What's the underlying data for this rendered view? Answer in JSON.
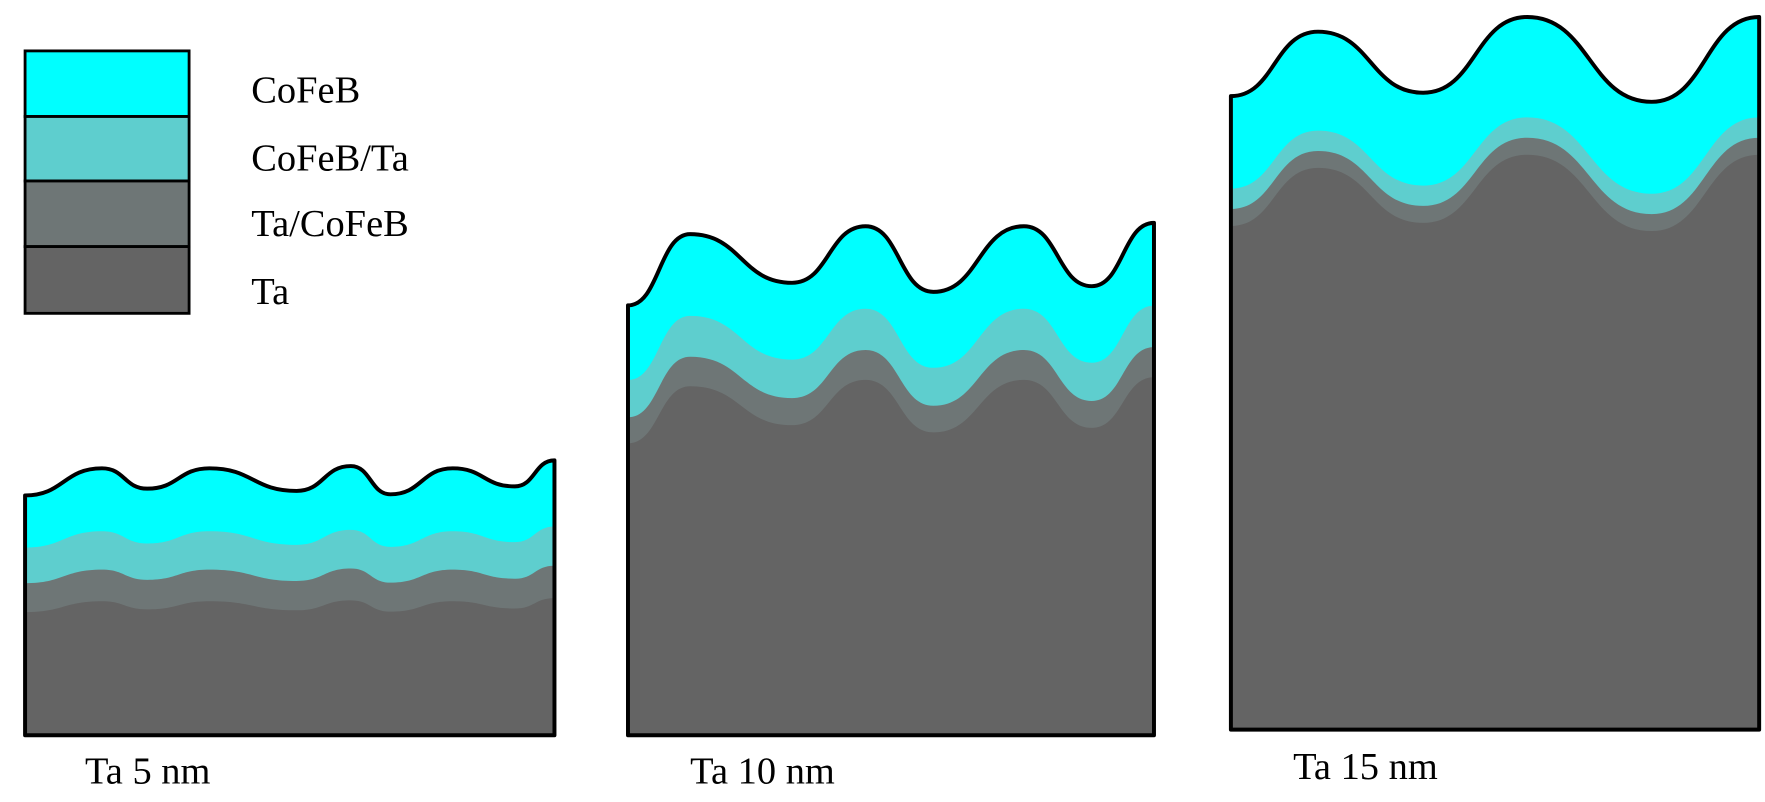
{
  "legend": {
    "items": [
      "CoFeB",
      "CoFeB/Ta",
      "Ta/CoFeB",
      "Ta"
    ]
  },
  "panels": [
    {
      "label": "Ta 5 nm"
    },
    {
      "label": "Ta 10 nm"
    },
    {
      "label": "Ta 15 nm"
    }
  ]
}
